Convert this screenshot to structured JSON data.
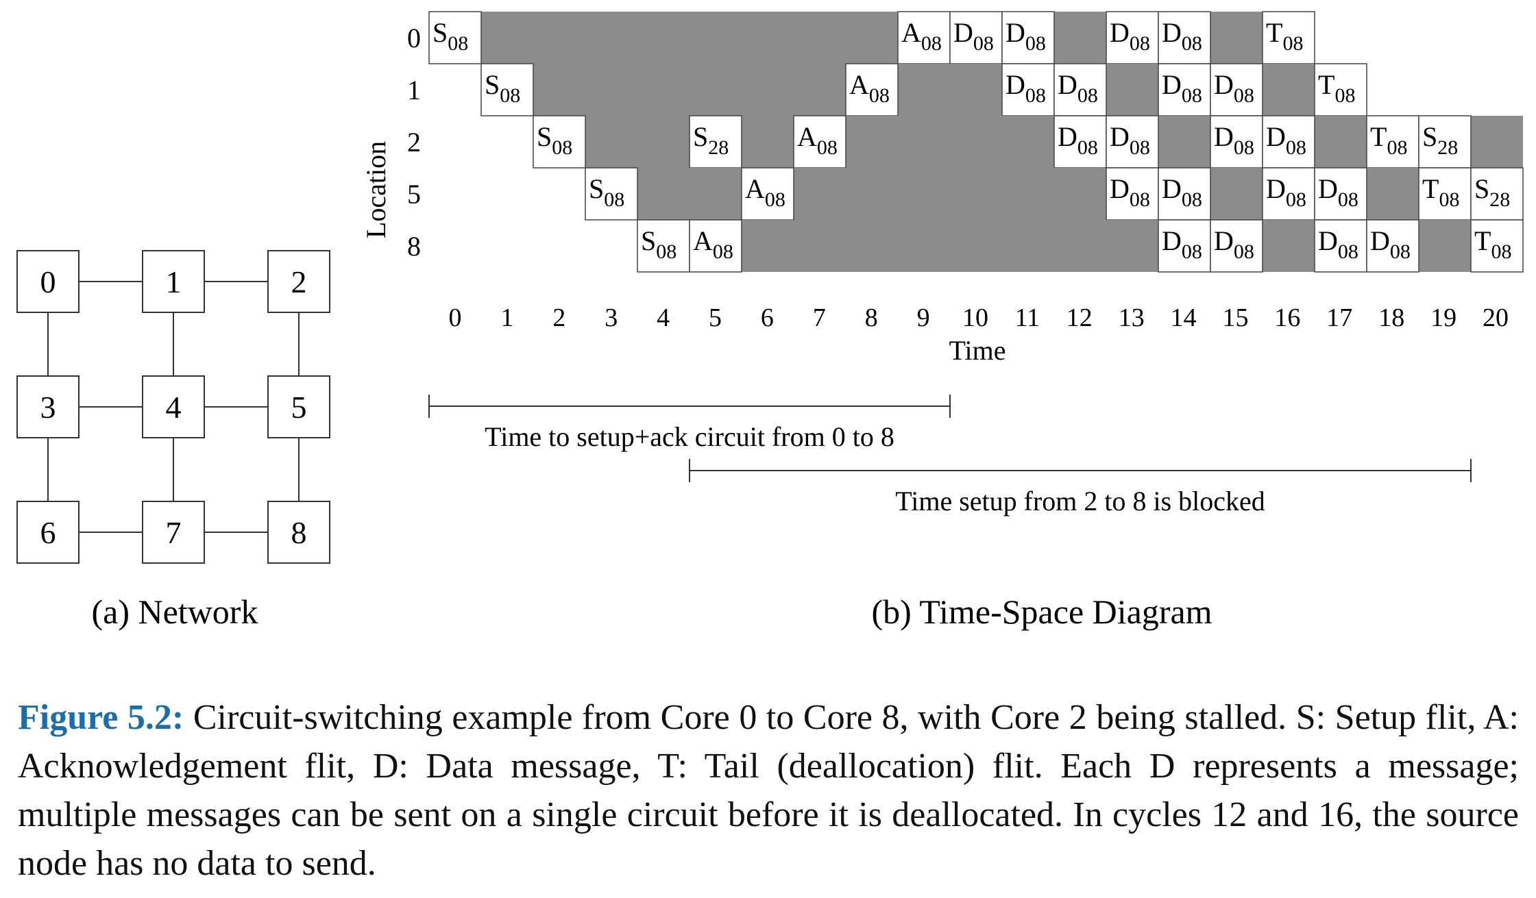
{
  "figure": {
    "network": {
      "nodes": [
        {
          "id": "0",
          "row": 0,
          "col": 0
        },
        {
          "id": "1",
          "row": 0,
          "col": 1
        },
        {
          "id": "2",
          "row": 0,
          "col": 2
        },
        {
          "id": "3",
          "row": 1,
          "col": 0
        },
        {
          "id": "4",
          "row": 1,
          "col": 1
        },
        {
          "id": "5",
          "row": 1,
          "col": 2
        },
        {
          "id": "6",
          "row": 2,
          "col": 0
        },
        {
          "id": "7",
          "row": 2,
          "col": 1
        },
        {
          "id": "8",
          "row": 2,
          "col": 2
        }
      ],
      "links": [
        [
          "0",
          "1"
        ],
        [
          "1",
          "2"
        ],
        [
          "3",
          "4"
        ],
        [
          "4",
          "5"
        ],
        [
          "6",
          "7"
        ],
        [
          "7",
          "8"
        ],
        [
          "0",
          "3"
        ],
        [
          "3",
          "6"
        ],
        [
          "1",
          "4"
        ],
        [
          "4",
          "7"
        ],
        [
          "2",
          "5"
        ],
        [
          "5",
          "8"
        ]
      ],
      "label": "(a) Network"
    },
    "time_space": {
      "label": "(b) Time-Space Diagram",
      "ylabel": "Location",
      "xlabel": "Time",
      "locations": [
        "0",
        "1",
        "2",
        "5",
        "8"
      ],
      "times": [
        "0",
        "1",
        "2",
        "3",
        "4",
        "5",
        "6",
        "7",
        "8",
        "9",
        "10",
        "11",
        "12",
        "13",
        "14",
        "15",
        "16",
        "17",
        "18",
        "19",
        "20"
      ],
      "colors": {
        "busy": "#8c8c8c",
        "cell_border": "#444444",
        "cell_fill": "#ffffff"
      },
      "rows": [
        {
          "location": "0",
          "busy": [
            1,
            8
          ],
          "cells": [
            {
              "t": 0,
              "l": "S",
              "s": "08"
            },
            {
              "t": 9,
              "l": "A",
              "s": "08"
            },
            {
              "t": 10,
              "l": "D",
              "s": "08"
            },
            {
              "t": 11,
              "l": "D",
              "s": "08"
            },
            {
              "t": 13,
              "l": "D",
              "s": "08"
            },
            {
              "t": 14,
              "l": "D",
              "s": "08"
            },
            {
              "t": 16,
              "l": "T",
              "s": "08"
            }
          ],
          "busy_extra": [
            [
              12,
              12
            ],
            [
              15,
              15
            ]
          ]
        },
        {
          "location": "1",
          "busy": [
            2,
            7
          ],
          "cells": [
            {
              "t": 1,
              "l": "S",
              "s": "08"
            },
            {
              "t": 8,
              "l": "A",
              "s": "08"
            },
            {
              "t": 11,
              "l": "D",
              "s": "08"
            },
            {
              "t": 12,
              "l": "D",
              "s": "08"
            },
            {
              "t": 14,
              "l": "D",
              "s": "08"
            },
            {
              "t": 15,
              "l": "D",
              "s": "08"
            },
            {
              "t": 17,
              "l": "T",
              "s": "08"
            }
          ],
          "busy_extra": [
            [
              9,
              10
            ],
            [
              13,
              13
            ],
            [
              16,
              16
            ]
          ]
        },
        {
          "location": "2",
          "busy": [
            3,
            4
          ],
          "cells": [
            {
              "t": 2,
              "l": "S",
              "s": "08"
            },
            {
              "t": 5,
              "l": "S",
              "s": "28"
            },
            {
              "t": 7,
              "l": "A",
              "s": "08"
            },
            {
              "t": 12,
              "l": "D",
              "s": "08"
            },
            {
              "t": 13,
              "l": "D",
              "s": "08"
            },
            {
              "t": 15,
              "l": "D",
              "s": "08"
            },
            {
              "t": 16,
              "l": "D",
              "s": "08"
            },
            {
              "t": 18,
              "l": "T",
              "s": "08"
            },
            {
              "t": 19,
              "l": "S",
              "s": "28"
            }
          ],
          "busy_extra": [
            [
              6,
              6
            ],
            [
              8,
              11
            ],
            [
              14,
              14
            ],
            [
              17,
              17
            ],
            [
              20,
              20
            ]
          ]
        },
        {
          "location": "5",
          "busy": [
            4,
            5
          ],
          "cells": [
            {
              "t": 3,
              "l": "S",
              "s": "08"
            },
            {
              "t": 6,
              "l": "A",
              "s": "08"
            },
            {
              "t": 13,
              "l": "D",
              "s": "08"
            },
            {
              "t": 14,
              "l": "D",
              "s": "08"
            },
            {
              "t": 16,
              "l": "D",
              "s": "08"
            },
            {
              "t": 17,
              "l": "D",
              "s": "08"
            },
            {
              "t": 19,
              "l": "T",
              "s": "08"
            },
            {
              "t": 20,
              "l": "S",
              "s": "28"
            }
          ],
          "busy_extra": [
            [
              7,
              12
            ],
            [
              15,
              15
            ],
            [
              18,
              18
            ]
          ]
        },
        {
          "location": "8",
          "busy": [
            6,
            13
          ],
          "cells": [
            {
              "t": 4,
              "l": "S",
              "s": "08"
            },
            {
              "t": 5,
              "l": "A",
              "s": "08"
            },
            {
              "t": 14,
              "l": "D",
              "s": "08"
            },
            {
              "t": 15,
              "l": "D",
              "s": "08"
            },
            {
              "t": 17,
              "l": "D",
              "s": "08"
            },
            {
              "t": 18,
              "l": "D",
              "s": "08"
            },
            {
              "t": 20,
              "l": "T",
              "s": "08"
            }
          ],
          "busy_extra": [
            [
              16,
              16
            ],
            [
              19,
              19
            ]
          ]
        }
      ],
      "spans": [
        {
          "from": 0,
          "to": 10,
          "label": "Time to setup+ack circuit from 0 to 8"
        },
        {
          "from": 5,
          "to": 20,
          "label": "Time setup from 2 to 8 is blocked"
        }
      ]
    }
  },
  "caption": {
    "lead": "Figure 5.2:",
    "text": "Circuit-switching example from Core 0 to Core 8, with Core 2 being stalled. S: Setup flit, A: Acknowledgement flit, D: Data message, T: Tail (deallocation) flit. Each D represents a message; multiple messages can be sent on a single circuit before it is deallocated. In cycles 12 and 16, the source node has no data to send."
  }
}
